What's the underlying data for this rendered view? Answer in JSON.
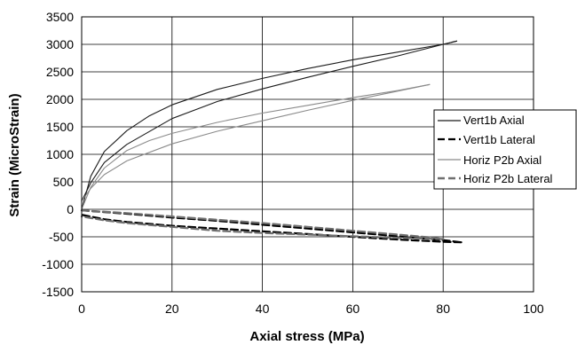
{
  "chart_data": {
    "type": "line",
    "xlabel": "Axial stress (MPa)",
    "ylabel": "Strain (MicroStrain)",
    "xlim": [
      0,
      100
    ],
    "ylim": [
      -1500,
      3500
    ],
    "xticks": [
      0,
      20,
      40,
      60,
      80,
      100
    ],
    "yticks": [
      -1500,
      -1000,
      -500,
      0,
      500,
      1000,
      1500,
      2000,
      2500,
      3000,
      3500
    ],
    "xtick_labels": [
      "0",
      "20",
      "40",
      "60",
      "80",
      "100"
    ],
    "ytick_labels": [
      "-1500",
      "-1000",
      "-500",
      "0",
      "500",
      "1000",
      "1500",
      "2000",
      "2500",
      "3000",
      "3500"
    ],
    "grid": true,
    "legend_position": "right",
    "series": [
      {
        "name": "Vert1b Axial",
        "style": "solid",
        "color": "#1a1a1a",
        "loading": {
          "x": [
            0,
            2,
            5,
            10,
            15,
            20,
            30,
            40,
            50,
            60,
            70,
            80,
            83
          ],
          "y": [
            0,
            600,
            1050,
            1430,
            1700,
            1900,
            2180,
            2380,
            2560,
            2720,
            2860,
            3000,
            3060
          ]
        },
        "unloading": {
          "x": [
            83,
            80,
            70,
            60,
            50,
            40,
            30,
            20,
            10,
            5,
            2,
            0
          ],
          "y": [
            3060,
            3000,
            2790,
            2600,
            2400,
            2190,
            1960,
            1650,
            1180,
            850,
            480,
            150
          ]
        }
      },
      {
        "name": "Vert1b Lateral",
        "style": "dashed",
        "color": "#000000",
        "loading": {
          "x": [
            0,
            10,
            20,
            30,
            40,
            50,
            60,
            70,
            80,
            84
          ],
          "y": [
            -20,
            -80,
            -150,
            -210,
            -280,
            -350,
            -420,
            -490,
            -560,
            -600
          ]
        },
        "unloading": {
          "x": [
            84,
            80,
            70,
            60,
            50,
            40,
            30,
            20,
            10,
            5,
            0
          ],
          "y": [
            -600,
            -590,
            -550,
            -500,
            -450,
            -400,
            -350,
            -300,
            -230,
            -180,
            -100
          ]
        }
      },
      {
        "name": "Horiz P2b Axial",
        "style": "solid",
        "color": "#8a8a8a",
        "loading": {
          "x": [
            0,
            2,
            5,
            10,
            15,
            20,
            30,
            40,
            50,
            60,
            70,
            77
          ],
          "y": [
            0,
            400,
            750,
            1070,
            1250,
            1380,
            1580,
            1750,
            1890,
            2030,
            2160,
            2270
          ]
        },
        "unloading": {
          "x": [
            77,
            70,
            60,
            50,
            40,
            30,
            20,
            10,
            5,
            2,
            0
          ],
          "y": [
            2270,
            2150,
            1980,
            1800,
            1610,
            1420,
            1190,
            880,
            630,
            380,
            150
          ]
        }
      },
      {
        "name": "Horiz P2b Lateral",
        "style": "dashed",
        "color": "#6f6f6f",
        "loading": {
          "x": [
            0,
            10,
            20,
            30,
            40,
            50,
            60,
            70,
            77,
            80
          ],
          "y": [
            -20,
            -70,
            -130,
            -190,
            -250,
            -320,
            -390,
            -460,
            -510,
            -540
          ]
        },
        "unloading": {
          "x": [
            80,
            70,
            60,
            50,
            40,
            30,
            20,
            10,
            5,
            0
          ],
          "y": [
            -540,
            -520,
            -490,
            -460,
            -430,
            -390,
            -320,
            -250,
            -200,
            -130
          ]
        }
      }
    ]
  }
}
